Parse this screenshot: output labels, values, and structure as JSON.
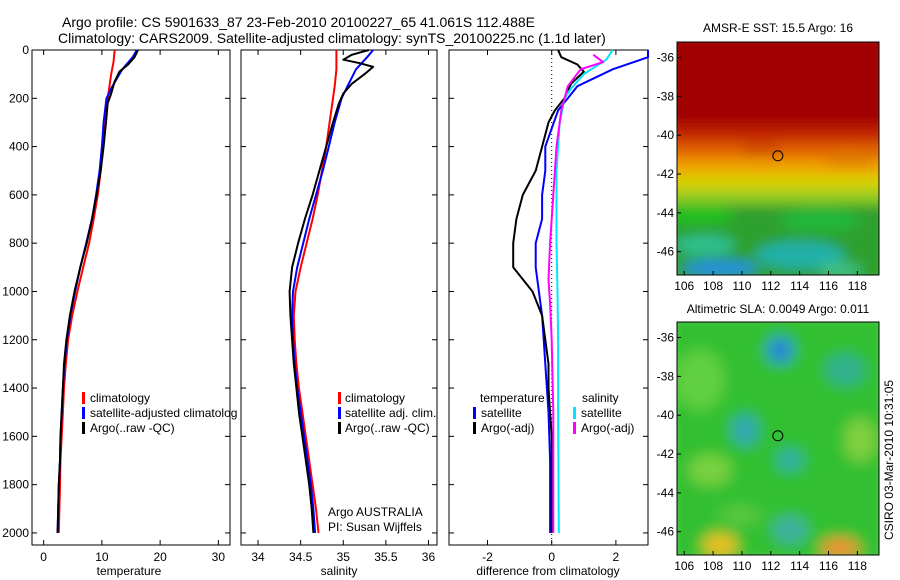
{
  "header": {
    "line1": "Argo profile: CS 5901633_87 23-Feb-2010 20100227_65 41.061S 112.488E",
    "line2": "Climatology: CARS2009. Satellite-adjusted climatology: synTS_20100225.nc (1.1d later)"
  },
  "side_label": "CSIRO 03-Mar-2010 10:31:05",
  "colors": {
    "climatology": "#ff0000",
    "satellite": "#0000ff",
    "argo": "#000000",
    "sat_salinity": "#00e5ff",
    "argo_salinity": "#ff00ff"
  },
  "chart_data": [
    {
      "type": "line",
      "id": "temperature",
      "xlabel": "temperature",
      "ylabel": "",
      "xlim": [
        -2,
        32
      ],
      "ylim": [
        2050,
        0
      ],
      "xticks": [
        0,
        10,
        20,
        30
      ],
      "yticks": [
        0,
        200,
        400,
        600,
        800,
        1000,
        1200,
        1400,
        1600,
        1800,
        2000
      ],
      "legend": {
        "placement": "bottom-right",
        "entries": [
          "climatology",
          "satellite-adjusted climatolog",
          "Argo(..raw -QC)"
        ]
      },
      "annotations": [],
      "series": [
        {
          "name": "climatology",
          "color_key": "climatology",
          "points": [
            [
              12.2,
              0
            ],
            [
              12,
              50
            ],
            [
              11.6,
              100
            ],
            [
              11,
              200
            ],
            [
              10.6,
              300
            ],
            [
              10.2,
              400
            ],
            [
              9.8,
              500
            ],
            [
              9.3,
              600
            ],
            [
              8.6,
              700
            ],
            [
              7.8,
              800
            ],
            [
              6.8,
              900
            ],
            [
              5.8,
              1000
            ],
            [
              4.9,
              1100
            ],
            [
              4.2,
              1200
            ],
            [
              3.8,
              1300
            ],
            [
              3.5,
              1400
            ],
            [
              3.3,
              1500
            ],
            [
              3.1,
              1600
            ],
            [
              2.9,
              1700
            ],
            [
              2.8,
              1800
            ],
            [
              2.7,
              1900
            ],
            [
              2.6,
              2000
            ]
          ]
        },
        {
          "name": "satellite-adjusted climatology",
          "color_key": "satellite",
          "points": [
            [
              16,
              0
            ],
            [
              15.3,
              30
            ],
            [
              13.5,
              80
            ],
            [
              11.8,
              150
            ],
            [
              10.8,
              200
            ],
            [
              10.3,
              300
            ],
            [
              10,
              400
            ],
            [
              9.6,
              500
            ],
            [
              9,
              600
            ],
            [
              8.3,
              700
            ],
            [
              7.3,
              800
            ],
            [
              6.3,
              900
            ],
            [
              5.4,
              1000
            ],
            [
              4.6,
              1100
            ],
            [
              4,
              1200
            ],
            [
              3.6,
              1300
            ],
            [
              3.3,
              1400
            ],
            [
              3.1,
              1500
            ],
            [
              2.9,
              1600
            ],
            [
              2.8,
              1700
            ],
            [
              2.6,
              1800
            ],
            [
              2.5,
              1900
            ],
            [
              2.4,
              2000
            ]
          ]
        },
        {
          "name": "Argo(..raw -QC)",
          "color_key": "argo",
          "points": [
            [
              16.2,
              0
            ],
            [
              15.6,
              30
            ],
            [
              14.5,
              60
            ],
            [
              13,
              90
            ],
            [
              12.2,
              130
            ],
            [
              11.6,
              180
            ],
            [
              11,
              220
            ],
            [
              10.7,
              300
            ],
            [
              10.3,
              400
            ],
            [
              9.8,
              500
            ],
            [
              9.1,
              600
            ],
            [
              8.3,
              700
            ],
            [
              7.4,
              800
            ],
            [
              6.3,
              900
            ],
            [
              5.3,
              1000
            ],
            [
              4.5,
              1100
            ],
            [
              3.9,
              1200
            ],
            [
              3.5,
              1300
            ],
            [
              3.3,
              1400
            ],
            [
              3.1,
              1500
            ],
            [
              2.9,
              1600
            ],
            [
              2.8,
              1700
            ],
            [
              2.6,
              1800
            ],
            [
              2.5,
              1900
            ],
            [
              2.4,
              2000
            ]
          ]
        }
      ]
    },
    {
      "type": "line",
      "id": "salinity",
      "xlabel": "salinity",
      "ylabel": "",
      "xlim": [
        33.8,
        36.1
      ],
      "ylim": [
        2050,
        0
      ],
      "xticks": [
        34,
        34.5,
        35,
        35.5,
        36
      ],
      "yticks": [],
      "legend": {
        "placement": "bottom-right",
        "entries": [
          "climatology",
          "satellite adj. clim.",
          "Argo(..raw -QC)"
        ]
      },
      "annotations": [
        "Argo AUSTRALIA",
        "PI: Susan Wijffels"
      ],
      "series": [
        {
          "name": "climatology",
          "color_key": "climatology",
          "points": [
            [
              34.92,
              0
            ],
            [
              34.92,
              80
            ],
            [
              34.9,
              150
            ],
            [
              34.88,
              200
            ],
            [
              34.84,
              300
            ],
            [
              34.8,
              400
            ],
            [
              34.75,
              500
            ],
            [
              34.7,
              600
            ],
            [
              34.64,
              700
            ],
            [
              34.57,
              800
            ],
            [
              34.5,
              900
            ],
            [
              34.44,
              1000
            ],
            [
              34.42,
              1100
            ],
            [
              34.43,
              1200
            ],
            [
              34.45,
              1300
            ],
            [
              34.48,
              1400
            ],
            [
              34.52,
              1500
            ],
            [
              34.56,
              1600
            ],
            [
              34.6,
              1700
            ],
            [
              34.64,
              1800
            ],
            [
              34.68,
              1900
            ],
            [
              34.71,
              2000
            ]
          ]
        },
        {
          "name": "satellite adj. clim.",
          "color_key": "satellite",
          "points": [
            [
              35.35,
              0
            ],
            [
              35.28,
              30
            ],
            [
              35.15,
              80
            ],
            [
              35.05,
              150
            ],
            [
              34.98,
              200
            ],
            [
              34.9,
              300
            ],
            [
              34.83,
              400
            ],
            [
              34.76,
              500
            ],
            [
              34.68,
              600
            ],
            [
              34.6,
              700
            ],
            [
              34.53,
              800
            ],
            [
              34.46,
              900
            ],
            [
              34.41,
              1000
            ],
            [
              34.4,
              1100
            ],
            [
              34.41,
              1200
            ],
            [
              34.43,
              1300
            ],
            [
              34.46,
              1400
            ],
            [
              34.5,
              1500
            ],
            [
              34.54,
              1600
            ],
            [
              34.58,
              1700
            ],
            [
              34.62,
              1800
            ],
            [
              34.65,
              1900
            ],
            [
              34.67,
              2000
            ]
          ]
        },
        {
          "name": "Argo(..raw -QC)",
          "color_key": "argo",
          "points": [
            [
              35.3,
              0
            ],
            [
              35.1,
              20
            ],
            [
              35.0,
              40
            ],
            [
              35.2,
              55
            ],
            [
              35.35,
              70
            ],
            [
              35.25,
              100
            ],
            [
              35.1,
              140
            ],
            [
              35.0,
              180
            ],
            [
              34.95,
              220
            ],
            [
              34.88,
              300
            ],
            [
              34.8,
              400
            ],
            [
              34.72,
              500
            ],
            [
              34.64,
              600
            ],
            [
              34.55,
              700
            ],
            [
              34.47,
              800
            ],
            [
              34.4,
              900
            ],
            [
              34.37,
              1000
            ],
            [
              34.38,
              1100
            ],
            [
              34.4,
              1200
            ],
            [
              34.42,
              1300
            ],
            [
              34.45,
              1400
            ],
            [
              34.48,
              1500
            ],
            [
              34.52,
              1600
            ],
            [
              34.56,
              1700
            ],
            [
              34.6,
              1800
            ],
            [
              34.63,
              1900
            ],
            [
              34.65,
              2000
            ]
          ]
        }
      ]
    },
    {
      "type": "line",
      "id": "difference",
      "xlabel": "difference from climatology",
      "ylabel": "",
      "xlim": [
        -3.2,
        3.0
      ],
      "ylim": [
        2050,
        0
      ],
      "xticks": [
        -2,
        0,
        2
      ],
      "yticks": [],
      "legend": {
        "placement": "bottom",
        "left_header": "temperature",
        "right_header": "salinity",
        "left_entries": [
          "satellite",
          "Argo(-adj)"
        ],
        "right_entries": [
          "satellite",
          "Argo(-adj)"
        ]
      },
      "annotations": [],
      "series": [
        {
          "name": "temperature satellite",
          "color_key": "satellite",
          "points": [
            [
              3.8,
              0
            ],
            [
              3.3,
              30
            ],
            [
              1.9,
              80
            ],
            [
              0.8,
              150
            ],
            [
              0.2,
              250
            ],
            [
              -0.2,
              400
            ],
            [
              -0.2,
              500
            ],
            [
              -0.3,
              600
            ],
            [
              -0.3,
              700
            ],
            [
              -0.5,
              800
            ],
            [
              -0.5,
              900
            ],
            [
              -0.4,
              1000
            ],
            [
              -0.3,
              1100
            ],
            [
              -0.2,
              1300
            ],
            [
              -0.1,
              1500
            ],
            [
              -0.05,
              1700
            ],
            [
              -0.05,
              2000
            ]
          ]
        },
        {
          "name": "temperature Argo(-adj)",
          "color_key": "argo",
          "points": [
            [
              0.2,
              0
            ],
            [
              0.3,
              30
            ],
            [
              0.8,
              60
            ],
            [
              1.0,
              90
            ],
            [
              0.6,
              140
            ],
            [
              0.4,
              200
            ],
            [
              0.1,
              250
            ],
            [
              -0.1,
              300
            ],
            [
              -0.3,
              400
            ],
            [
              -0.5,
              500
            ],
            [
              -0.9,
              600
            ],
            [
              -1.1,
              700
            ],
            [
              -1.2,
              800
            ],
            [
              -1.2,
              900
            ],
            [
              -0.6,
              1000
            ],
            [
              -0.3,
              1100
            ],
            [
              -0.2,
              1200
            ],
            [
              -0.1,
              1300
            ],
            [
              -0.1,
              1400
            ],
            [
              0.0,
              1600
            ],
            [
              0.0,
              1800
            ],
            [
              0.0,
              2000
            ]
          ]
        },
        {
          "name": "salinity satellite",
          "color_key": "sat_salinity",
          "points": [
            [
              1.9,
              0
            ],
            [
              1.7,
              40
            ],
            [
              1.0,
              100
            ],
            [
              0.6,
              160
            ],
            [
              0.4,
              200
            ],
            [
              0.25,
              300
            ],
            [
              0.15,
              500
            ],
            [
              0.15,
              800
            ],
            [
              0.18,
              1000
            ],
            [
              0.2,
              1200
            ],
            [
              0.2,
              1500
            ],
            [
              0.22,
              2000
            ]
          ]
        },
        {
          "name": "salinity Argo(-adj)",
          "color_key": "argo_salinity",
          "points": [
            [
              1.3,
              20
            ],
            [
              1.6,
              50
            ],
            [
              0.9,
              80
            ],
            [
              0.5,
              150
            ],
            [
              0.3,
              250
            ],
            [
              0.15,
              400
            ],
            [
              0.05,
              600
            ],
            [
              -0.05,
              800
            ],
            [
              -0.1,
              950
            ],
            [
              -0.05,
              1050
            ],
            [
              0.0,
              1200
            ],
            [
              0.05,
              1500
            ],
            [
              0.05,
              2000
            ]
          ]
        }
      ]
    },
    {
      "type": "heatmap",
      "id": "sst-map",
      "title": "AMSR-E SST: 15.5 Argo: 16",
      "xlim": [
        105.5,
        119.5
      ],
      "ylim": [
        -47.2,
        -35.2
      ],
      "xticks": [
        106,
        108,
        110,
        112,
        114,
        116,
        118
      ],
      "yticks": [
        -36,
        -38,
        -40,
        -42,
        -44,
        -46
      ],
      "marker": {
        "lon": 112.49,
        "lat": -41.06
      }
    },
    {
      "type": "heatmap",
      "id": "sla-map",
      "title": "Altimetric SLA: 0.0049 Argo: 0.011",
      "xlim": [
        105.5,
        119.5
      ],
      "ylim": [
        -47.2,
        -35.2
      ],
      "xticks": [
        106,
        108,
        110,
        112,
        114,
        116,
        118
      ],
      "yticks": [
        -36,
        -38,
        -40,
        -42,
        -44,
        -46
      ],
      "marker": {
        "lon": 112.49,
        "lat": -41.06
      }
    }
  ]
}
